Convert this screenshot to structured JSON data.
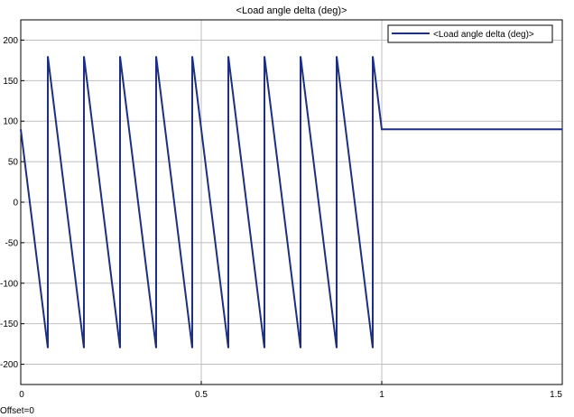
{
  "window": {
    "offset_label": "Offset=0"
  },
  "chart_data": {
    "type": "line",
    "title": "<Load angle   delta  (deg)>",
    "xlabel": "",
    "ylabel": "",
    "xlim": [
      0,
      1.5
    ],
    "ylim": [
      -225,
      225
    ],
    "xticks": [
      0,
      0.5,
      1,
      1.5
    ],
    "xtick_labels": [
      "0",
      "0.5",
      "1",
      "1.5"
    ],
    "yticks": [
      200,
      150,
      100,
      50,
      0,
      -50,
      -100,
      -150,
      -200
    ],
    "ytick_labels": [
      "200",
      "150",
      "100",
      "50",
      "0",
      "-50",
      "-100",
      "-150",
      "-200"
    ],
    "grid": true,
    "legend": {
      "position": "top-right",
      "entries": [
        "<Load angle   delta  (deg)>"
      ]
    },
    "series": [
      {
        "name": "<Load angle   delta  (deg)>",
        "color": "#1f2f80",
        "x": [
          0,
          0.075,
          0.075,
          0.175,
          0.175,
          0.275,
          0.275,
          0.375,
          0.375,
          0.475,
          0.475,
          0.575,
          0.575,
          0.675,
          0.675,
          0.775,
          0.775,
          0.875,
          0.875,
          0.975,
          0.975,
          1.0,
          1.5
        ],
        "y": [
          90,
          -180,
          180,
          -180,
          180,
          -180,
          180,
          -180,
          180,
          -180,
          180,
          -180,
          180,
          -180,
          180,
          -180,
          180,
          -180,
          180,
          -180,
          180,
          90,
          90
        ]
      }
    ]
  }
}
